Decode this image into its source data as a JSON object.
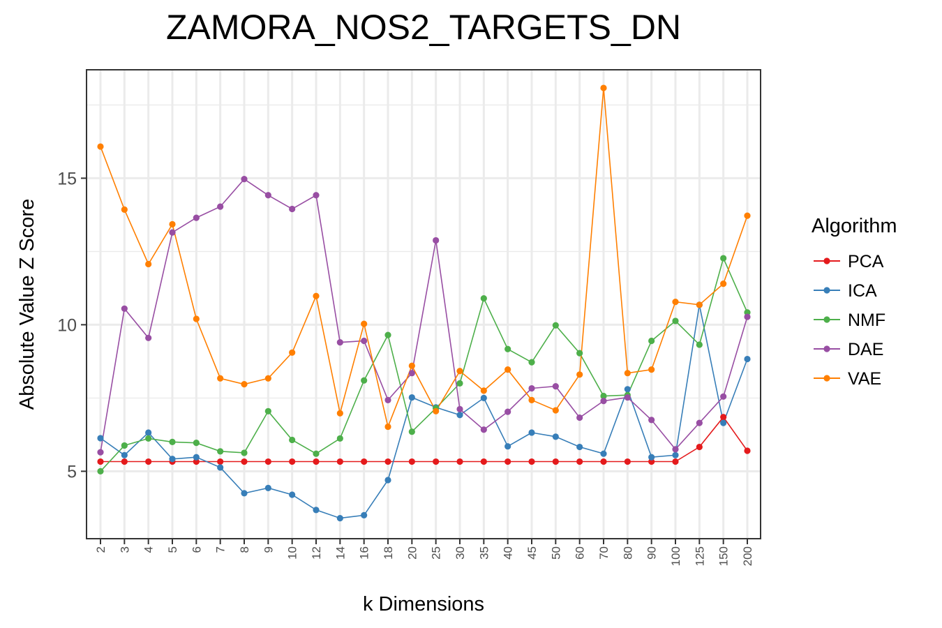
{
  "chart_data": {
    "type": "line",
    "title": "ZAMORA_NOS2_TARGETS_DN",
    "xlabel": "k Dimensions",
    "ylabel": "Absolute Value Z Score",
    "categories": [
      "2",
      "3",
      "4",
      "5",
      "6",
      "7",
      "8",
      "9",
      "10",
      "12",
      "14",
      "16",
      "18",
      "20",
      "25",
      "30",
      "35",
      "40",
      "45",
      "50",
      "60",
      "70",
      "80",
      "90",
      "100",
      "125",
      "150",
      "200"
    ],
    "yticks": [
      5,
      10,
      15
    ],
    "ylim": [
      2.7,
      18.7
    ],
    "grid": true,
    "legend_title": "Algorithm",
    "legend_position": "right",
    "series": [
      {
        "name": "PCA",
        "color": "#E41A1C",
        "values": [
          5.33,
          5.33,
          5.33,
          5.33,
          5.33,
          5.33,
          5.33,
          5.33,
          5.33,
          5.33,
          5.33,
          5.33,
          5.33,
          5.33,
          5.33,
          5.33,
          5.33,
          5.33,
          5.33,
          5.33,
          5.33,
          5.33,
          5.33,
          5.33,
          5.33,
          5.83,
          6.85,
          5.7
        ]
      },
      {
        "name": "ICA",
        "color": "#377EB8",
        "values": [
          6.13,
          5.55,
          6.32,
          5.42,
          5.48,
          5.13,
          4.25,
          4.43,
          4.2,
          3.68,
          3.4,
          3.5,
          4.7,
          7.52,
          7.18,
          6.92,
          7.5,
          5.85,
          6.32,
          6.18,
          5.83,
          5.6,
          7.8,
          5.48,
          5.55,
          10.68,
          6.65,
          8.83
        ]
      },
      {
        "name": "NMF",
        "color": "#4DAF4A",
        "values": [
          5.0,
          5.88,
          6.12,
          6.0,
          5.97,
          5.68,
          5.63,
          7.05,
          6.07,
          5.6,
          6.12,
          8.1,
          9.65,
          6.35,
          7.15,
          8.0,
          10.9,
          9.17,
          8.72,
          9.98,
          9.03,
          7.57,
          7.6,
          9.45,
          10.13,
          9.32,
          12.27,
          10.42
        ]
      },
      {
        "name": "DAE",
        "color": "#984EA3",
        "values": [
          5.65,
          10.55,
          9.55,
          13.15,
          13.65,
          14.03,
          14.97,
          14.42,
          13.95,
          14.42,
          9.4,
          9.45,
          7.43,
          8.35,
          12.88,
          7.12,
          6.42,
          7.03,
          7.83,
          7.9,
          6.83,
          7.4,
          7.52,
          6.75,
          5.75,
          6.65,
          7.55,
          10.27
        ]
      },
      {
        "name": "VAE",
        "color": "#FF7F00",
        "values": [
          16.08,
          13.93,
          12.07,
          13.43,
          10.2,
          8.17,
          7.97,
          8.17,
          9.05,
          10.98,
          6.98,
          10.03,
          6.52,
          8.6,
          7.05,
          8.42,
          7.75,
          8.47,
          7.43,
          7.08,
          8.3,
          18.08,
          8.35,
          8.47,
          10.78,
          10.68,
          11.4,
          13.72
        ]
      }
    ]
  }
}
